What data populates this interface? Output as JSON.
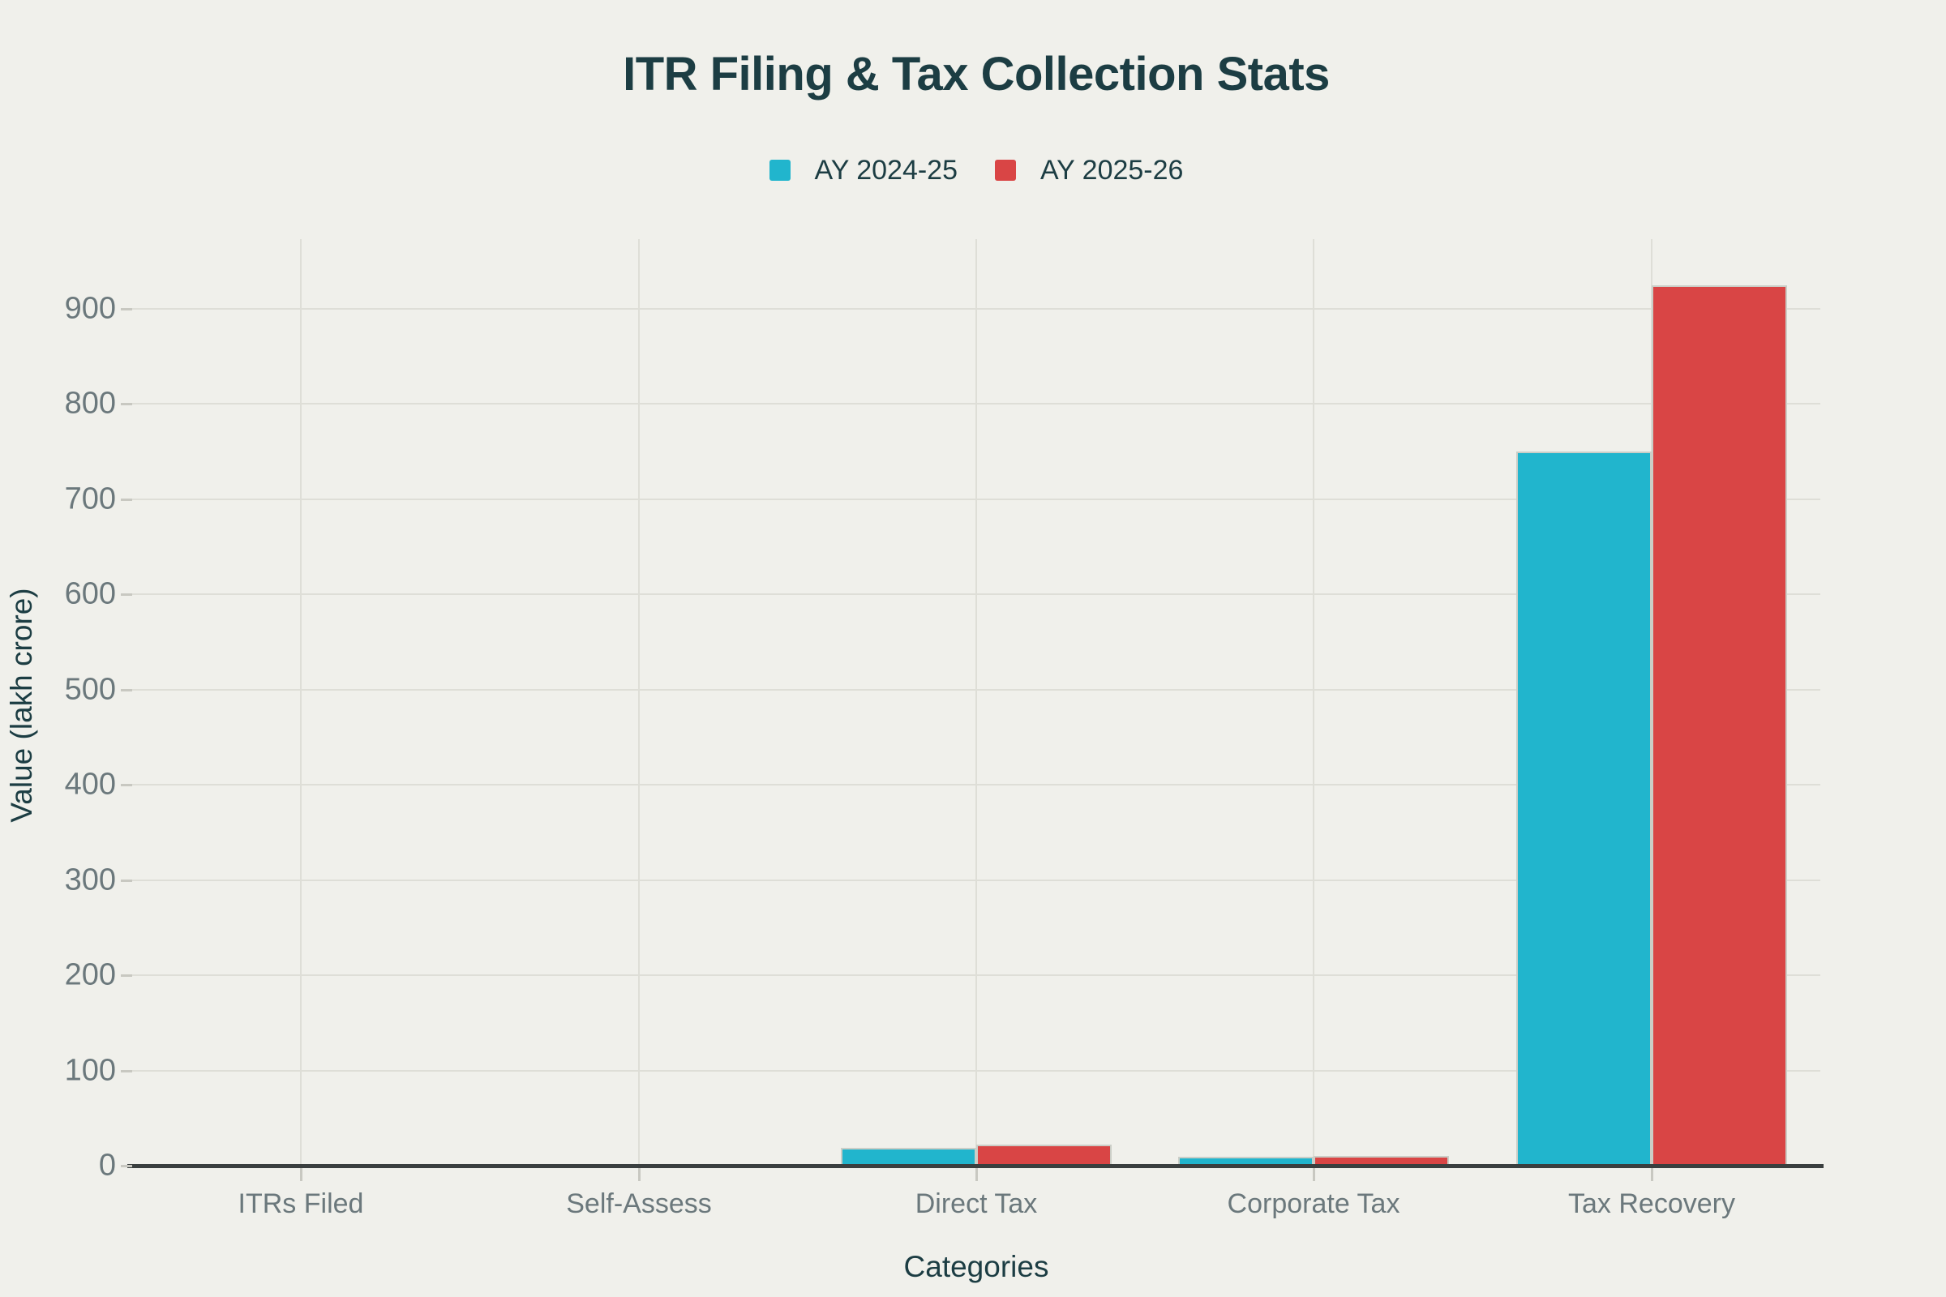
{
  "chart": {
    "title": "ITR Filing & Tax Collection Stats"
  },
  "chart_data": {
    "type": "bar",
    "title": "ITR Filing & Tax Collection Stats",
    "xlabel": "Categories",
    "ylabel": "Value (lakh crore)",
    "categories": [
      "ITRs Filed",
      "Self-Assess",
      "Direct Tax",
      "Corporate Tax",
      "Tax Recovery"
    ],
    "series": [
      {
        "name": "AY 2024-25",
        "color": "#21B5CD",
        "values": [
          0,
          0,
          19,
          9.5,
          750
        ]
      },
      {
        "name": "AY 2025-26",
        "color": "#D94545",
        "values": [
          0,
          0,
          22,
          10,
          925
        ]
      }
    ],
    "ylim": [
      0,
      975
    ],
    "yticks": [
      0,
      100,
      200,
      300,
      400,
      500,
      600,
      700,
      800,
      900
    ],
    "grid": true,
    "legend_position": "top-center"
  },
  "colors": {
    "background": "#F0F0EB",
    "title_text": "#1C3D43",
    "tick_text": "#6B787C",
    "gridline": "#DEDED7",
    "axis_line": "#3A3F3F",
    "bar_edge": "#CBCEC7",
    "series_teal": "#21B5CD",
    "series_red": "#D94545"
  }
}
